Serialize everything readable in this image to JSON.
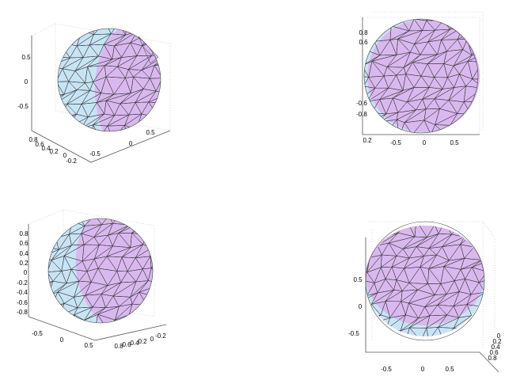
{
  "panels": [
    {
      "z_ticks": [
        "0.5",
        "0",
        "-0.5"
      ],
      "y_ticks": [
        "0.8",
        "0.6",
        "0.4",
        "0.2",
        "0",
        "-0.2"
      ],
      "x_ticks": [
        "-0.5",
        "0",
        "0.5"
      ]
    },
    {
      "y_ticks": [
        "0.8",
        "0.6",
        "-0.6",
        "-0.8"
      ],
      "x_ticks": [
        "0.2",
        "-0.5",
        "0",
        "0.5"
      ]
    },
    {
      "z_ticks": [
        "0.8",
        "0.6",
        "0.4",
        "0.2",
        "0",
        "-0.2",
        "-0.4",
        "-0.6",
        "-0.8"
      ],
      "x_ticks": [
        "-0.5",
        "0",
        "0.5"
      ],
      "y_ticks": [
        "0.8",
        "0.6",
        "0.4",
        "0.2",
        "0",
        "-0.2"
      ]
    },
    {
      "y_ticks": [
        "0.5",
        "0",
        "-0.5"
      ],
      "x_ticks": [
        "-0.5",
        "0",
        "0.5"
      ],
      "z_ticks": [
        "0",
        "0.2",
        "0.4",
        "0.6",
        "0.8"
      ]
    }
  ]
}
